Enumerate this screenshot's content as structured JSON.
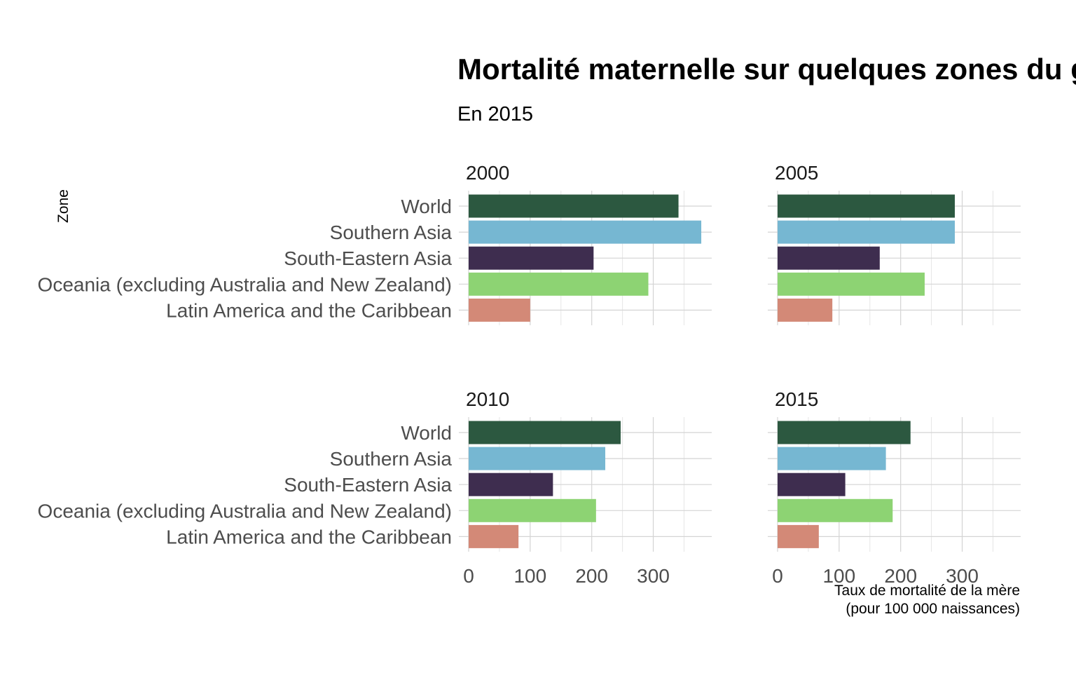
{
  "chart_data": {
    "type": "bar",
    "orientation": "horizontal",
    "title": "Mortalité maternelle sur quelques zones du globe",
    "subtitle": "En 2015",
    "xlabel": "Taux de mortalité de la mère\n(pour 100 000 naissances)",
    "ylabel": "Zone",
    "xlim": [
      0,
      395
    ],
    "xticks": [
      0,
      100,
      200,
      300
    ],
    "grid": true,
    "legend": "none",
    "categories": [
      "World",
      "Southern Asia",
      "South-Eastern Asia",
      "Oceania (excluding Australia and New Zealand)",
      "Latin America and the Caribbean"
    ],
    "colors": [
      "#2c5840",
      "#76b7d2",
      "#3e2d4f",
      "#8dd373",
      "#d38977"
    ],
    "facets": [
      {
        "name": "2000",
        "values": [
          341,
          378,
          203,
          292,
          100
        ]
      },
      {
        "name": "2005",
        "values": [
          288,
          288,
          166,
          239,
          89
        ]
      },
      {
        "name": "2010",
        "values": [
          247,
          222,
          137,
          207,
          81
        ]
      },
      {
        "name": "2015",
        "values": [
          216,
          176,
          110,
          187,
          67
        ]
      }
    ]
  }
}
